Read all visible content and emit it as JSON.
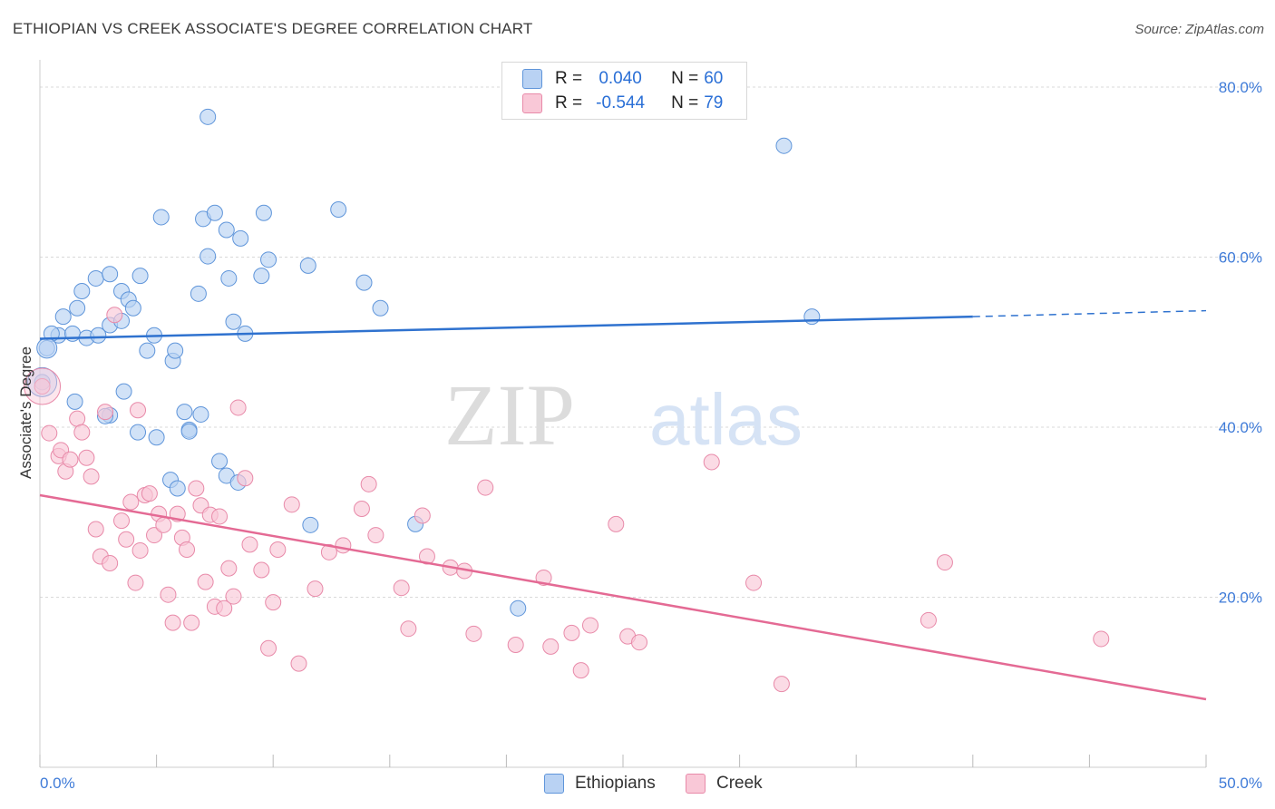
{
  "title": "ETHIOPIAN VS CREEK ASSOCIATE'S DEGREE CORRELATION CHART",
  "source": "Source: ZipAtlas.com",
  "watermark": {
    "zip": "ZIP",
    "atlas": "atlas"
  },
  "legend": {
    "ethiopians": {
      "r_label": "R =",
      "r_value": "0.040",
      "n_label": "N =",
      "n_value": "60"
    },
    "creek": {
      "r_label": "R =",
      "r_value": "-0.544",
      "n_label": "N =",
      "n_value": "79"
    }
  },
  "bottom_legend": {
    "ethiopians": "Ethiopians",
    "creek": "Creek"
  },
  "colors": {
    "ethiopians_fill": "#b9d2f3",
    "ethiopians_stroke": "#5f95da",
    "ethiopians_line": "#2f72cf",
    "creek_fill": "#f9c8d7",
    "creek_stroke": "#e88aa9",
    "creek_line": "#e46a94",
    "tick_label": "#3f7bd8",
    "grid": "#d9d9d9"
  },
  "chart_data": {
    "type": "scatter",
    "ylabel": "Associate's Degree",
    "xlim": [
      0,
      50
    ],
    "ylim": [
      0,
      80
    ],
    "x_tick_labels": [
      "0.0%",
      "50.0%"
    ],
    "y_ticks": [
      20,
      40,
      60,
      80
    ],
    "y_tick_labels": [
      "20.0%",
      "40.0%",
      "60.0%",
      "80.0%"
    ],
    "grid": true,
    "series": [
      {
        "name": "Ethiopians",
        "trend": {
          "x": [
            0,
            40
          ],
          "y": [
            50.4,
            53.0
          ],
          "dashed_to": [
            50,
            53.7
          ]
        },
        "points": [
          [
            0.3,
            49.3
          ],
          [
            0.8,
            50.8
          ],
          [
            0.5,
            51.0
          ],
          [
            1.0,
            53.0
          ],
          [
            1.4,
            51.0
          ],
          [
            1.6,
            54.0
          ],
          [
            2.0,
            50.5
          ],
          [
            2.5,
            50.8
          ],
          [
            1.8,
            56.0
          ],
          [
            2.4,
            57.5
          ],
          [
            3.0,
            52.0
          ],
          [
            3.5,
            52.5
          ],
          [
            3.0,
            58.0
          ],
          [
            3.5,
            56.0
          ],
          [
            3.8,
            55.0
          ],
          [
            4.0,
            54.0
          ],
          [
            4.3,
            57.8
          ],
          [
            4.9,
            50.8
          ],
          [
            4.6,
            49.0
          ],
          [
            5.0,
            38.8
          ],
          [
            5.2,
            64.7
          ],
          [
            5.7,
            47.8
          ],
          [
            5.8,
            49.0
          ],
          [
            5.6,
            33.8
          ],
          [
            6.2,
            41.8
          ],
          [
            6.4,
            39.7
          ],
          [
            6.4,
            39.5
          ],
          [
            5.9,
            32.8
          ],
          [
            6.8,
            55.7
          ],
          [
            6.9,
            41.5
          ],
          [
            7.0,
            64.5
          ],
          [
            7.2,
            76.5
          ],
          [
            7.2,
            60.1
          ],
          [
            7.5,
            65.2
          ],
          [
            7.7,
            36.0
          ],
          [
            8.0,
            63.2
          ],
          [
            8.1,
            57.5
          ],
          [
            8.0,
            34.3
          ],
          [
            8.3,
            52.4
          ],
          [
            8.5,
            33.5
          ],
          [
            8.6,
            62.2
          ],
          [
            8.8,
            51.0
          ],
          [
            9.5,
            57.8
          ],
          [
            9.6,
            65.2
          ],
          [
            9.8,
            59.7
          ],
          [
            11.5,
            59.0
          ],
          [
            11.6,
            28.5
          ],
          [
            12.8,
            65.6
          ],
          [
            13.9,
            57.0
          ],
          [
            14.6,
            54.0
          ],
          [
            16.1,
            28.6
          ],
          [
            20.5,
            18.7
          ],
          [
            31.9,
            73.1
          ],
          [
            33.1,
            53.0
          ],
          [
            0.1,
            45.3
          ],
          [
            1.5,
            43.0
          ],
          [
            3.0,
            41.4
          ],
          [
            3.6,
            44.2
          ],
          [
            2.8,
            41.3
          ],
          [
            4.2,
            39.4
          ]
        ]
      },
      {
        "name": "Creek",
        "trend": {
          "x": [
            0,
            50
          ],
          "y": [
            32.0,
            8.0
          ]
        },
        "points": [
          [
            0.1,
            44.8
          ],
          [
            0.4,
            39.3
          ],
          [
            0.8,
            36.6
          ],
          [
            0.9,
            37.3
          ],
          [
            1.1,
            34.8
          ],
          [
            1.3,
            36.2
          ],
          [
            1.6,
            41.0
          ],
          [
            1.8,
            39.4
          ],
          [
            2.0,
            36.4
          ],
          [
            2.2,
            34.2
          ],
          [
            2.4,
            28.0
          ],
          [
            2.6,
            24.8
          ],
          [
            2.8,
            41.8
          ],
          [
            3.0,
            24.0
          ],
          [
            3.2,
            53.2
          ],
          [
            3.5,
            29.0
          ],
          [
            3.7,
            26.8
          ],
          [
            3.9,
            31.2
          ],
          [
            4.1,
            21.7
          ],
          [
            4.3,
            25.5
          ],
          [
            4.5,
            32.0
          ],
          [
            4.7,
            32.2
          ],
          [
            4.9,
            27.3
          ],
          [
            5.1,
            29.8
          ],
          [
            5.3,
            28.5
          ],
          [
            5.5,
            20.3
          ],
          [
            5.7,
            17.0
          ],
          [
            5.9,
            29.8
          ],
          [
            6.1,
            27.0
          ],
          [
            6.3,
            25.6
          ],
          [
            6.5,
            17.0
          ],
          [
            6.7,
            32.8
          ],
          [
            6.9,
            30.8
          ],
          [
            7.1,
            21.8
          ],
          [
            7.3,
            29.7
          ],
          [
            7.5,
            18.9
          ],
          [
            7.7,
            29.5
          ],
          [
            7.9,
            18.7
          ],
          [
            8.1,
            23.4
          ],
          [
            8.3,
            20.1
          ],
          [
            8.5,
            42.3
          ],
          [
            8.8,
            34.0
          ],
          [
            9.0,
            26.2
          ],
          [
            9.5,
            23.2
          ],
          [
            9.8,
            14.0
          ],
          [
            10.0,
            19.4
          ],
          [
            10.2,
            25.6
          ],
          [
            10.8,
            30.9
          ],
          [
            11.1,
            12.2
          ],
          [
            11.8,
            21.0
          ],
          [
            12.4,
            25.3
          ],
          [
            13.0,
            26.1
          ],
          [
            13.8,
            30.4
          ],
          [
            14.1,
            33.3
          ],
          [
            14.4,
            27.3
          ],
          [
            15.5,
            21.1
          ],
          [
            15.8,
            16.3
          ],
          [
            16.4,
            29.6
          ],
          [
            16.6,
            24.8
          ],
          [
            17.6,
            23.5
          ],
          [
            18.2,
            23.1
          ],
          [
            18.6,
            15.7
          ],
          [
            19.1,
            32.9
          ],
          [
            20.4,
            14.4
          ],
          [
            21.6,
            22.3
          ],
          [
            21.9,
            14.2
          ],
          [
            22.8,
            15.8
          ],
          [
            23.2,
            11.4
          ],
          [
            23.6,
            16.7
          ],
          [
            24.7,
            28.6
          ],
          [
            25.2,
            15.4
          ],
          [
            25.7,
            14.7
          ],
          [
            28.8,
            35.9
          ],
          [
            30.6,
            21.7
          ],
          [
            31.8,
            9.8
          ],
          [
            38.1,
            17.3
          ],
          [
            38.8,
            24.1
          ],
          [
            45.5,
            15.1
          ],
          [
            4.2,
            42.0
          ]
        ]
      }
    ]
  }
}
